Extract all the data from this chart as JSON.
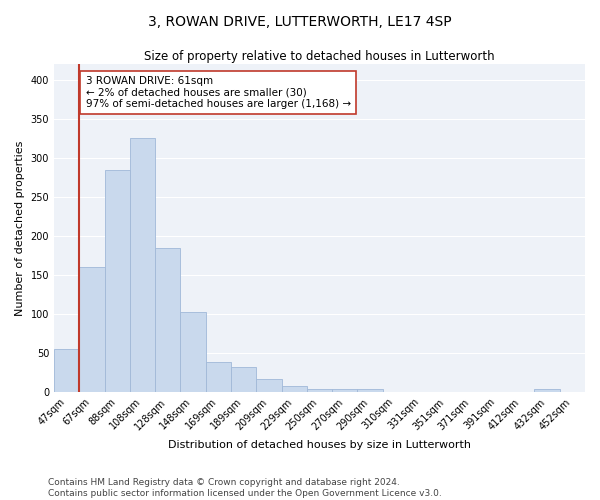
{
  "title": "3, ROWAN DRIVE, LUTTERWORTH, LE17 4SP",
  "subtitle": "Size of property relative to detached houses in Lutterworth",
  "xlabel": "Distribution of detached houses by size in Lutterworth",
  "ylabel": "Number of detached properties",
  "categories": [
    "47sqm",
    "67sqm",
    "88sqm",
    "108sqm",
    "128sqm",
    "148sqm",
    "169sqm",
    "189sqm",
    "209sqm",
    "229sqm",
    "250sqm",
    "270sqm",
    "290sqm",
    "310sqm",
    "331sqm",
    "351sqm",
    "371sqm",
    "391sqm",
    "412sqm",
    "432sqm",
    "452sqm"
  ],
  "values": [
    55,
    160,
    284,
    325,
    184,
    103,
    38,
    32,
    16,
    7,
    4,
    4,
    4,
    0,
    0,
    0,
    0,
    0,
    0,
    4,
    0
  ],
  "bar_color": "#c9d9ed",
  "bar_edge_color": "#a0b8d8",
  "vline_color": "#c0392b",
  "annotation_text": "3 ROWAN DRIVE: 61sqm\n← 2% of detached houses are smaller (30)\n97% of semi-detached houses are larger (1,168) →",
  "annotation_box_color": "#ffffff",
  "annotation_box_edge_color": "#c0392b",
  "ylim": [
    0,
    420
  ],
  "yticks": [
    0,
    50,
    100,
    150,
    200,
    250,
    300,
    350,
    400
  ],
  "background_color": "#eef2f8",
  "footer_text": "Contains HM Land Registry data © Crown copyright and database right 2024.\nContains public sector information licensed under the Open Government Licence v3.0.",
  "title_fontsize": 10,
  "subtitle_fontsize": 8.5,
  "xlabel_fontsize": 8,
  "ylabel_fontsize": 8,
  "tick_fontsize": 7,
  "annotation_fontsize": 7.5,
  "footer_fontsize": 6.5
}
